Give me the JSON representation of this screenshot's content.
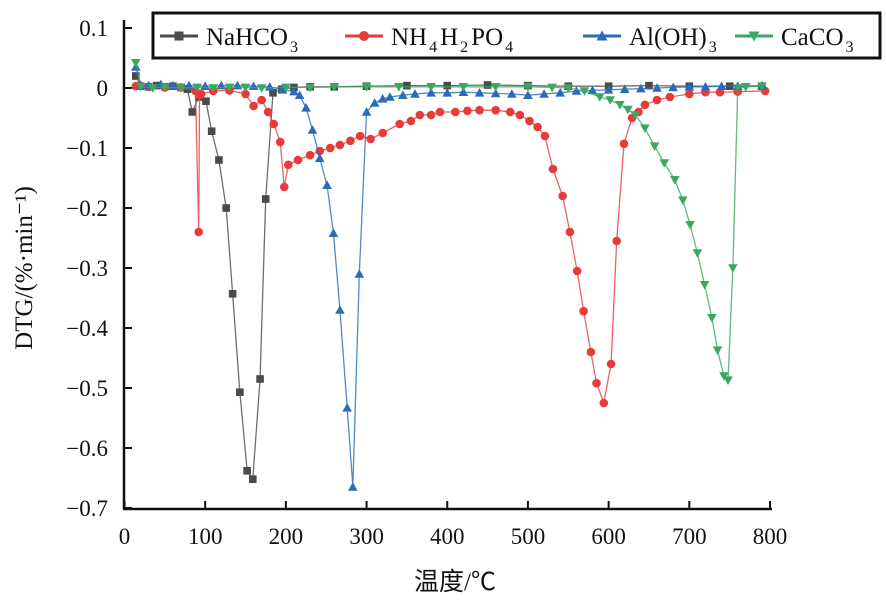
{
  "chart_data": {
    "type": "line",
    "title": "",
    "xlabel": "温度/℃",
    "ylabel": "DTG/(%·min⁻¹)",
    "xlim": [
      0,
      800
    ],
    "ylim": [
      -0.7,
      0.1
    ],
    "xticks": [
      "0",
      "100",
      "200",
      "300",
      "400",
      "500",
      "600",
      "700",
      "800"
    ],
    "yticks": [
      "0.1",
      "0",
      "−0.1",
      "−0.2",
      "−0.3",
      "−0.4",
      "−0.5",
      "−0.6",
      "−0.7"
    ],
    "grid": false,
    "legend_placement": "top",
    "series": [
      {
        "name": "NaHCO3",
        "legend_main": "NaHCO",
        "legend_sub": "3",
        "marker": "square",
        "color": "#4a4a4a",
        "x": [
          14,
          20,
          30,
          40,
          50,
          60,
          70,
          78,
          84,
          92,
          101,
          108,
          117,
          126,
          134,
          143,
          152,
          159,
          168,
          175,
          184,
          195,
          210,
          230,
          260,
          300,
          350,
          400,
          450,
          500,
          550,
          600,
          650,
          700,
          750,
          790
        ],
        "y": [
          0.02,
          0.003,
          0.002,
          0.004,
          0.002,
          0.003,
          0.001,
          -0.002,
          -0.04,
          -0.015,
          -0.022,
          -0.072,
          -0.12,
          -0.2,
          -0.343,
          -0.507,
          -0.638,
          -0.652,
          -0.485,
          -0.185,
          -0.008,
          -0.002,
          0.001,
          0.002,
          0.002,
          0.003,
          0.004,
          0.004,
          0.005,
          0.004,
          0.003,
          0.003,
          0.004,
          0.003,
          0.003,
          0.003
        ]
      },
      {
        "name": "NH4H2PO4",
        "legend_parts": [
          "NH",
          "4",
          "H",
          "2",
          "PO",
          "4"
        ],
        "marker": "circle",
        "color": "#e83a3a",
        "x": [
          14,
          30,
          50,
          70,
          88,
          92,
          93,
          95,
          110,
          130,
          150,
          160,
          170,
          178,
          185,
          193,
          198,
          203,
          215,
          230,
          242,
          255,
          267,
          280,
          292,
          305,
          320,
          341,
          355,
          366,
          380,
          391,
          410,
          425,
          440,
          460,
          478,
          490,
          502,
          512,
          521,
          531,
          543,
          552,
          561,
          569,
          578,
          585,
          594,
          603,
          610,
          619,
          629,
          637,
          645,
          660,
          676,
          700,
          720,
          738,
          760,
          794
        ],
        "y": [
          0.003,
          0.002,
          0.001,
          0.001,
          -0.005,
          -0.24,
          -0.012,
          -0.01,
          -0.005,
          -0.004,
          -0.01,
          -0.03,
          -0.02,
          -0.04,
          -0.06,
          -0.09,
          -0.165,
          -0.128,
          -0.12,
          -0.112,
          -0.105,
          -0.1,
          -0.095,
          -0.088,
          -0.08,
          -0.085,
          -0.075,
          -0.06,
          -0.055,
          -0.045,
          -0.045,
          -0.04,
          -0.04,
          -0.038,
          -0.037,
          -0.037,
          -0.04,
          -0.045,
          -0.055,
          -0.065,
          -0.08,
          -0.135,
          -0.18,
          -0.24,
          -0.305,
          -0.372,
          -0.44,
          -0.492,
          -0.525,
          -0.46,
          -0.255,
          -0.093,
          -0.05,
          -0.04,
          -0.028,
          -0.02,
          -0.015,
          -0.01,
          -0.007,
          -0.007,
          -0.006,
          -0.005
        ]
      },
      {
        "name": "Al(OH)3",
        "legend_main": "Al(OH)",
        "legend_sub": "3",
        "marker": "triangle-up",
        "color": "#2a6ab8",
        "x": [
          14,
          20,
          30,
          45,
          60,
          80,
          100,
          120,
          140,
          160,
          180,
          196,
          210,
          217,
          225,
          233,
          242,
          251,
          259,
          267,
          276,
          283,
          291,
          300,
          310,
          320,
          329,
          345,
          360,
          380,
          400,
          420,
          440,
          460,
          480,
          500,
          520,
          540,
          560,
          580,
          600,
          620,
          640,
          660,
          680,
          700,
          720,
          740,
          760,
          790
        ],
        "y": [
          0.035,
          0.005,
          0.004,
          0.006,
          0.004,
          0.004,
          0.003,
          0.004,
          0.004,
          0.003,
          0.002,
          -0.003,
          -0.006,
          -0.012,
          -0.033,
          -0.07,
          -0.117,
          -0.162,
          -0.242,
          -0.37,
          -0.533,
          -0.665,
          -0.31,
          -0.04,
          -0.025,
          -0.018,
          -0.015,
          -0.012,
          -0.01,
          -0.008,
          -0.008,
          -0.007,
          -0.008,
          -0.009,
          -0.01,
          -0.012,
          -0.01,
          -0.008,
          -0.005,
          -0.004,
          -0.003,
          -0.002,
          -0.001,
          0.0,
          0.001,
          0.002,
          0.002,
          0.003,
          0.003,
          0.004
        ]
      },
      {
        "name": "CaCO3",
        "legend_main": "CaCO",
        "legend_sub": "3",
        "marker": "triangle-down",
        "color": "#3aa860",
        "x": [
          14,
          20,
          35,
          50,
          70,
          90,
          110,
          130,
          150,
          170,
          200,
          230,
          260,
          300,
          340,
          380,
          420,
          460,
          500,
          530,
          550,
          570,
          589,
          602,
          614,
          624,
          633,
          645,
          657,
          669,
          682,
          692,
          701,
          710,
          719,
          728,
          735,
          743,
          748,
          754,
          760,
          770,
          790
        ],
        "y": [
          0.042,
          0.002,
          0.0,
          0.001,
          0.0,
          0.001,
          0.0,
          0.001,
          0.001,
          0.0,
          0.001,
          0.001,
          0.002,
          0.002,
          0.002,
          0.002,
          0.002,
          0.002,
          0.002,
          0.001,
          0.0,
          -0.005,
          -0.015,
          -0.02,
          -0.028,
          -0.036,
          -0.045,
          -0.067,
          -0.097,
          -0.125,
          -0.153,
          -0.187,
          -0.228,
          -0.275,
          -0.328,
          -0.383,
          -0.437,
          -0.48,
          -0.487,
          -0.3,
          0.0,
          0.002,
          0.003
        ]
      }
    ]
  }
}
